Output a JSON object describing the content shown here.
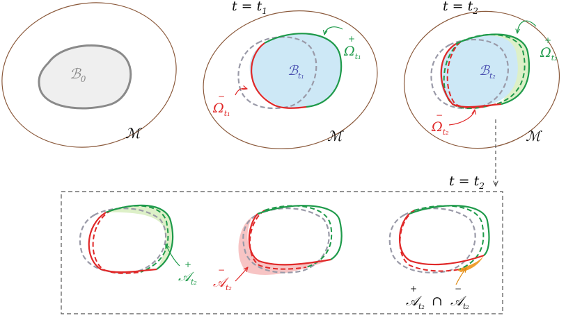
{
  "time_labels": {
    "t1": "t = t",
    "t1_sub": "1",
    "t2": "t = t",
    "t2_sub": "2",
    "bottom": "t = t",
    "bottom_sub": "2"
  },
  "panels": {
    "p0": {
      "body": "ℬ",
      "body_sub": "0",
      "manifold": "ℳ"
    },
    "p1": {
      "body": "ℬ",
      "body_sub": "t₁",
      "manifold": "ℳ",
      "omega_plus": "Ω",
      "omega_plus_mark": "+",
      "omega_plus_sub": "t₁",
      "omega_minus": "Ω",
      "omega_minus_mark": "−",
      "omega_minus_sub": "t₁"
    },
    "p2": {
      "body": "ℬ",
      "body_sub": "t₂",
      "manifold": "ℳ",
      "omega_plus": "Ω",
      "omega_plus_mark": "+",
      "omega_plus_sub": "t₂",
      "omega_minus": "Ω",
      "omega_minus_mark": "−",
      "omega_minus_sub": "t₂"
    }
  },
  "bottom_panels": {
    "a_plus": {
      "symbol": "𝒜",
      "mark": "+",
      "sub": "t₂"
    },
    "a_minus": {
      "symbol": "𝒜",
      "mark": "−",
      "sub": "t₂"
    },
    "intersection": {
      "left": "𝒜",
      "left_mark": "+",
      "left_sub": "t₂",
      "op": "∩",
      "right": "𝒜",
      "right_mark": "−",
      "right_sub": "t₂"
    }
  },
  "colors": {
    "manifold": "#8b5a3c",
    "body0_fill": "#efefef",
    "body0_stroke": "#8a8a8a",
    "body_fill": "#cde8f6",
    "body_label": "#4a4fb0",
    "gray_dash": "#9a9aa8",
    "green": "#1e9a4a",
    "red": "#e02828",
    "green_fill": "#ddf0c8",
    "red_fill": "#f7c4c4",
    "orange_fill": "#f0a030",
    "box": "#555555"
  }
}
